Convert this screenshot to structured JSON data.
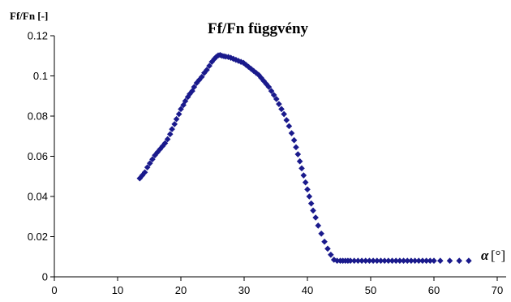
{
  "chart_data": {
    "type": "scatter",
    "title": "Ff/Fn függvény",
    "ylabel": "Ff/Fn [-]",
    "xlabel": "[°]",
    "xlabel_symbol": "α",
    "xlim": [
      0,
      70
    ],
    "ylim": [
      0,
      0.12
    ],
    "x_ticks": [
      "0",
      "10",
      "20",
      "30",
      "40",
      "50",
      "60",
      "70"
    ],
    "y_ticks": [
      "0",
      "0.02",
      "0.04",
      "0.06",
      "0.08",
      "0.1",
      "0.12"
    ],
    "grid": false,
    "legend": "none",
    "marker": "diamond",
    "marker_color": "#1a1a8c",
    "series": [
      {
        "x": [
          13.5,
          13.9,
          14.3,
          14.7,
          15.1,
          15.5,
          15.9,
          16.3,
          16.7,
          17.1,
          17.5,
          17.9,
          18.3,
          18.6,
          19.0,
          19.3,
          19.7,
          20.0,
          20.4,
          20.7,
          21.1,
          21.4,
          21.8,
          22.1,
          22.5,
          22.9,
          23.3,
          23.7,
          24.1,
          24.5,
          24.9,
          25.3,
          25.6,
          25.9,
          26.2,
          26.5,
          26.8,
          27.1,
          27.5,
          27.9,
          28.3,
          28.7,
          29.1,
          29.5,
          29.9,
          30.3,
          30.7,
          31.1,
          31.5,
          31.9,
          32.3,
          32.7,
          33.1,
          33.5,
          33.9,
          34.3,
          34.7,
          35.1,
          35.5,
          35.9,
          36.3,
          36.7,
          37.1,
          37.5,
          37.9,
          38.2,
          38.5,
          38.8,
          39.1,
          39.4,
          39.7,
          40.0,
          40.3,
          40.6,
          40.9,
          41.3,
          41.7,
          42.2,
          42.7,
          43.2,
          43.7,
          44.2,
          44.7,
          45.2,
          45.6,
          46.0,
          46.4,
          46.8,
          47.4,
          48.0,
          48.6,
          49.2,
          49.8,
          50.4,
          51.0,
          51.6,
          52.2,
          52.8,
          53.4,
          54.0,
          54.6,
          55.2,
          55.8,
          56.4,
          57.0,
          57.6,
          58.2,
          58.8,
          59.4,
          60.0,
          61.0,
          62.5,
          64.0,
          65.5
        ],
        "y": [
          0.049,
          0.0505,
          0.052,
          0.0545,
          0.0565,
          0.0585,
          0.0605,
          0.062,
          0.0635,
          0.065,
          0.0665,
          0.0685,
          0.071,
          0.0735,
          0.076,
          0.0785,
          0.081,
          0.0835,
          0.0855,
          0.0875,
          0.0895,
          0.091,
          0.0925,
          0.0945,
          0.0965,
          0.098,
          0.0995,
          0.1015,
          0.103,
          0.105,
          0.107,
          0.1085,
          0.1095,
          0.1102,
          0.1104,
          0.11,
          0.1098,
          0.1096,
          0.1094,
          0.109,
          0.1085,
          0.108,
          0.1075,
          0.107,
          0.1065,
          0.1055,
          0.1045,
          0.1035,
          0.1025,
          0.1015,
          0.1005,
          0.099,
          0.0975,
          0.096,
          0.0945,
          0.0925,
          0.0905,
          0.0885,
          0.086,
          0.0835,
          0.081,
          0.078,
          0.075,
          0.0715,
          0.068,
          0.0645,
          0.061,
          0.0575,
          0.054,
          0.0505,
          0.047,
          0.0435,
          0.04,
          0.0365,
          0.033,
          0.0295,
          0.0255,
          0.0215,
          0.0175,
          0.014,
          0.011,
          0.0085,
          0.008,
          0.008,
          0.008,
          0.008,
          0.008,
          0.008,
          0.008,
          0.008,
          0.008,
          0.008,
          0.008,
          0.008,
          0.008,
          0.008,
          0.008,
          0.008,
          0.008,
          0.008,
          0.008,
          0.008,
          0.008,
          0.008,
          0.008,
          0.008,
          0.008,
          0.008,
          0.008,
          0.008,
          0.008,
          0.008,
          0.008,
          0.008
        ]
      }
    ]
  }
}
